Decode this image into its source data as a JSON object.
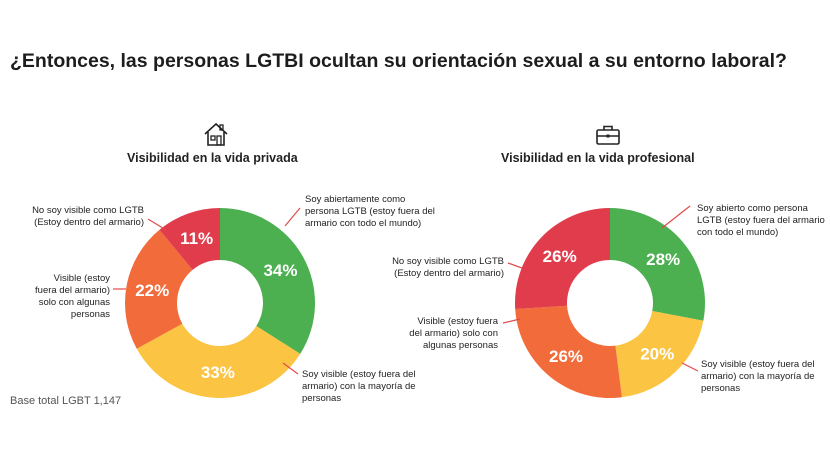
{
  "title": "¿Entonces, las personas LGTBI ocultan su orientación sexual a su entorno laboral?",
  "base_note": "Base total LGBT 1,147",
  "icons": {
    "left": "house-icon",
    "right": "briefcase-icon"
  },
  "colors": {
    "green": "#4caf50",
    "yellow": "#fbc443",
    "orange": "#f26b3a",
    "red": "#e13c4c",
    "line": "#e24a4a"
  },
  "chart_data": [
    {
      "type": "pie",
      "title": "Visibilidad en la vida privada",
      "slices": [
        {
          "label": "Soy abiertamente como persona LGTB (estoy fuera del armario con todo el mundo)",
          "value": 34,
          "display": "34%",
          "color": "#4caf50"
        },
        {
          "label": "Soy visible (estoy fuera del armario) con la mayoría de personas",
          "value": 33,
          "display": "33%",
          "color": "#fbc443"
        },
        {
          "label": "Visible (estoy fuera del armario) solo con algunas personas",
          "value": 22,
          "display": "22%",
          "color": "#f26b3a"
        },
        {
          "label": "No soy visible como LGTB (Estoy dentro del armario)",
          "value": 11,
          "display": "11%",
          "color": "#e13c4c"
        }
      ]
    },
    {
      "type": "pie",
      "title": "Visibilidad en la vida profesional",
      "slices": [
        {
          "label": "Soy abierto como persona LGTB (estoy fuera del armario con todo el mundo)",
          "value": 28,
          "display": "28%",
          "color": "#4caf50"
        },
        {
          "label": "Soy visible (estoy fuera del armario) con la mayoría de personas",
          "value": 20,
          "display": "20%",
          "color": "#fbc443"
        },
        {
          "label": "Visible (estoy fuera del armario) solo con algunas personas",
          "value": 26,
          "display": "26%",
          "color": "#f26b3a"
        },
        {
          "label": "No soy visible como LGTB (Estoy dentro del armario)",
          "value": 26,
          "display": "26%",
          "color": "#e13c4c"
        }
      ]
    }
  ]
}
